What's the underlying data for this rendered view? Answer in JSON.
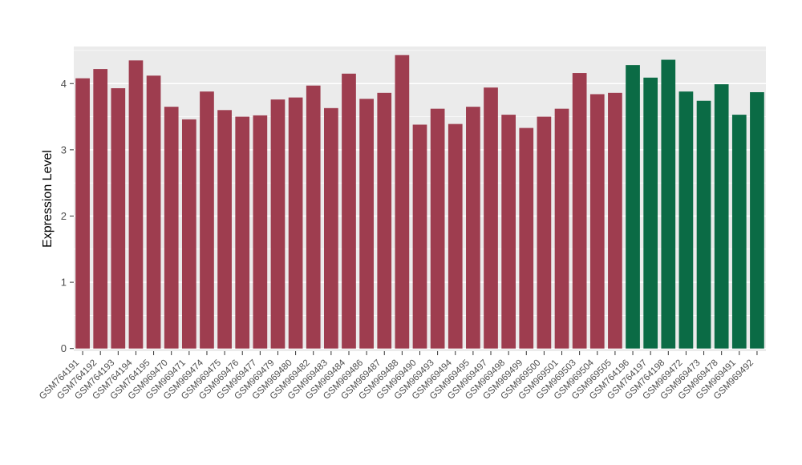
{
  "theme": {
    "page_bg": "#FFFFFF",
    "panel_bg": "#EBEBEB",
    "grid_color": "#FFFFFF",
    "axis_text_color": "#4D4D4D",
    "axis_title_color": "#000000",
    "tick_color": "#333333"
  },
  "chart_data": {
    "type": "bar",
    "title": "",
    "xlabel": "",
    "ylabel": "Expression Level",
    "ylim": [
      0,
      4.55
    ],
    "yticks": [
      0,
      1,
      2,
      3,
      4
    ],
    "grid": true,
    "legend": false,
    "group_colors": {
      "red": "#9E3D4F",
      "green": "#0B6B45"
    },
    "bars": [
      {
        "label": "GSM764191",
        "value": 4.08,
        "group": "red"
      },
      {
        "label": "GSM764192",
        "value": 4.22,
        "group": "red"
      },
      {
        "label": "GSM764193",
        "value": 3.93,
        "group": "red"
      },
      {
        "label": "GSM764194",
        "value": 4.35,
        "group": "red"
      },
      {
        "label": "GSM764195",
        "value": 4.12,
        "group": "red"
      },
      {
        "label": "GSM969470",
        "value": 3.65,
        "group": "red"
      },
      {
        "label": "GSM969471",
        "value": 3.46,
        "group": "red"
      },
      {
        "label": "GSM969474",
        "value": 3.88,
        "group": "red"
      },
      {
        "label": "GSM969475",
        "value": 3.6,
        "group": "red"
      },
      {
        "label": "GSM969476",
        "value": 3.5,
        "group": "red"
      },
      {
        "label": "GSM969477",
        "value": 3.52,
        "group": "red"
      },
      {
        "label": "GSM969479",
        "value": 3.76,
        "group": "red"
      },
      {
        "label": "GSM969480",
        "value": 3.79,
        "group": "red"
      },
      {
        "label": "GSM969482",
        "value": 3.97,
        "group": "red"
      },
      {
        "label": "GSM969483",
        "value": 3.63,
        "group": "red"
      },
      {
        "label": "GSM969484",
        "value": 4.15,
        "group": "red"
      },
      {
        "label": "GSM969486",
        "value": 3.77,
        "group": "red"
      },
      {
        "label": "GSM969487",
        "value": 3.86,
        "group": "red"
      },
      {
        "label": "GSM969488",
        "value": 4.43,
        "group": "red"
      },
      {
        "label": "GSM969490",
        "value": 3.38,
        "group": "red"
      },
      {
        "label": "GSM969493",
        "value": 3.62,
        "group": "red"
      },
      {
        "label": "GSM969494",
        "value": 3.39,
        "group": "red"
      },
      {
        "label": "GSM969495",
        "value": 3.65,
        "group": "red"
      },
      {
        "label": "GSM969497",
        "value": 3.94,
        "group": "red"
      },
      {
        "label": "GSM969498",
        "value": 3.53,
        "group": "red"
      },
      {
        "label": "GSM969499",
        "value": 3.33,
        "group": "red"
      },
      {
        "label": "GSM969500",
        "value": 3.5,
        "group": "red"
      },
      {
        "label": "GSM969501",
        "value": 3.62,
        "group": "red"
      },
      {
        "label": "GSM969503",
        "value": 4.16,
        "group": "red"
      },
      {
        "label": "GSM969504",
        "value": 3.84,
        "group": "red"
      },
      {
        "label": "GSM969505",
        "value": 3.86,
        "group": "red"
      },
      {
        "label": "GSM764196",
        "value": 4.28,
        "group": "green"
      },
      {
        "label": "GSM764197",
        "value": 4.09,
        "group": "green"
      },
      {
        "label": "GSM764198",
        "value": 4.36,
        "group": "green"
      },
      {
        "label": "GSM969472",
        "value": 3.88,
        "group": "green"
      },
      {
        "label": "GSM969473",
        "value": 3.74,
        "group": "green"
      },
      {
        "label": "GSM969478",
        "value": 3.99,
        "group": "green"
      },
      {
        "label": "GSM969491",
        "value": 3.53,
        "group": "green"
      },
      {
        "label": "GSM969492",
        "value": 3.87,
        "group": "green"
      }
    ]
  }
}
